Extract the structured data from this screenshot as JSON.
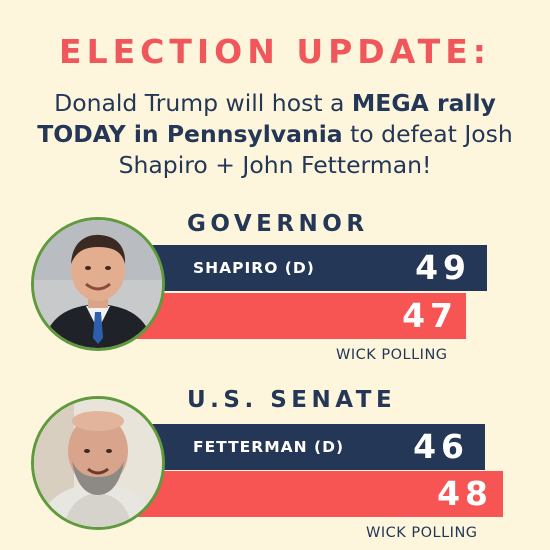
{
  "headline": "ELECTION UPDATE:",
  "subline": {
    "part1": "Donald Trump will host a ",
    "strong": "MEGA rally TODAY in Pennsylvania",
    "part2": " to defeat Josh Shapiro + John Fetterman!"
  },
  "races": [
    {
      "title": "GOVERNOR",
      "dem_label": "SHAPIRO (D)",
      "dem_value": "49",
      "rep_value": "47",
      "source": "WICK POLLING"
    },
    {
      "title": "U.S. SENATE",
      "dem_label": "FETTERMAN (D)",
      "dem_value": "46",
      "rep_value": "48",
      "source": "WICK POLLING"
    }
  ],
  "colors": {
    "background": "#fdf6dc",
    "headline": "#f0575a",
    "navy": "#243757",
    "red": "#f75454",
    "ring": "#5f9a3c"
  }
}
